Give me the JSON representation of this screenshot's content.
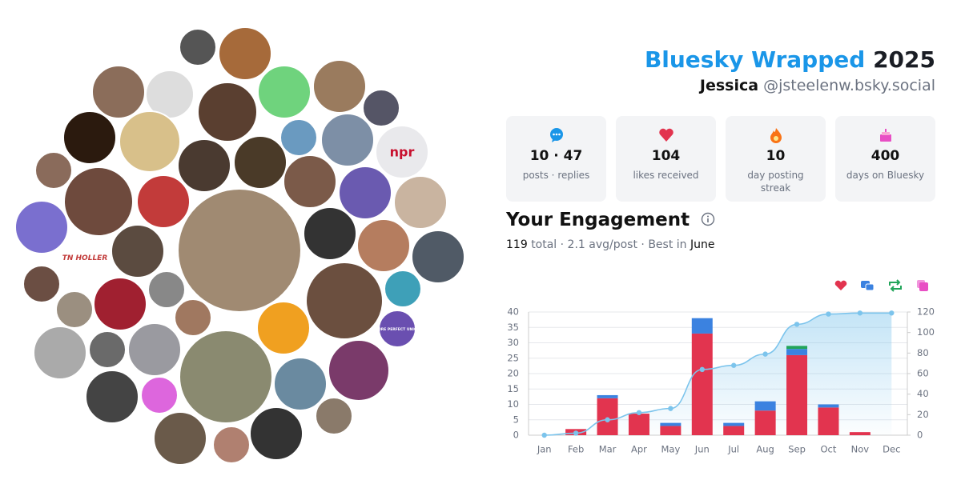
{
  "header": {
    "title_main": "Bluesky Wrapped",
    "title_year": "2025",
    "display_name": "Jessica",
    "handle": "@jsteelenw.bsky.social"
  },
  "stats": [
    {
      "value": "10 · 47",
      "label": "posts · replies"
    },
    {
      "value": "104",
      "label": "likes received"
    },
    {
      "value": "10",
      "label": "day posting streak"
    },
    {
      "value": "400",
      "label": "days on Bluesky"
    }
  ],
  "engagement": {
    "title": "Your Engagement",
    "total": "119",
    "middle": "total · 2.1 avg/post · Best in",
    "best": "June"
  },
  "avatar_texts": [
    "npr",
    "TN HOLLER",
    "MORE PERFECT UNION"
  ],
  "chart_data": {
    "type": "bar",
    "stacked": true,
    "grid": true,
    "categories": [
      "Jan",
      "Feb",
      "Mar",
      "Apr",
      "May",
      "Jun",
      "Jul",
      "Aug",
      "Sep",
      "Oct",
      "Nov",
      "Dec"
    ],
    "series": [
      {
        "color": "#e2344f",
        "values": [
          0,
          2,
          12,
          7,
          3,
          33,
          3,
          8,
          26,
          9,
          1,
          0
        ]
      },
      {
        "color": "#3b82e0",
        "values": [
          0,
          0,
          1,
          0,
          1,
          5,
          1,
          3,
          2,
          1,
          0,
          0
        ]
      },
      {
        "color": "#22a55a",
        "values": [
          0,
          0,
          0,
          0,
          0,
          0,
          0,
          0,
          1,
          0,
          0,
          0
        ]
      },
      {
        "color": "#e84fc4",
        "values": [
          0,
          0,
          0,
          0,
          0,
          0,
          0,
          0,
          0,
          0,
          0,
          0
        ]
      },
      {
        "type": "line",
        "axis": "y2",
        "color": "#7cc4ec",
        "values": [
          0,
          2,
          15,
          22,
          26,
          64,
          68,
          79,
          108,
          118,
          119,
          119
        ]
      }
    ],
    "ylim": [
      0,
      40
    ],
    "yticks": [
      0,
      5,
      10,
      15,
      20,
      25,
      30,
      35,
      40
    ],
    "y2lim": [
      0,
      120
    ],
    "y2ticks": [
      0,
      20,
      40,
      60,
      80,
      100,
      120
    ]
  }
}
